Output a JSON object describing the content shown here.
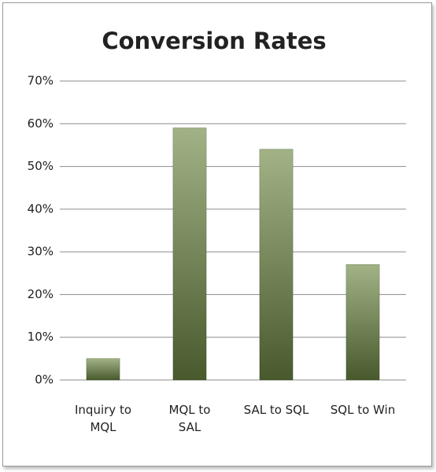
{
  "chart_data": {
    "type": "bar",
    "title": "Conversion Rates",
    "categories": [
      "Inquiry to\nMQL",
      "MQL to\nSAL",
      "SAL to SQL",
      "SQL to Win"
    ],
    "values": [
      5,
      59,
      54,
      27
    ],
    "color": "#6f8a45",
    "ylim": [
      0,
      70
    ],
    "yticks": [
      {
        "value": 0,
        "label": "0%"
      },
      {
        "value": 10,
        "label": "10%"
      },
      {
        "value": 20,
        "label": "20%"
      },
      {
        "value": 30,
        "label": "30%"
      },
      {
        "value": 40,
        "label": "40%"
      },
      {
        "value": 50,
        "label": "50%"
      },
      {
        "value": 60,
        "label": "60%"
      },
      {
        "value": 70,
        "label": "70%"
      }
    ],
    "grid": true
  }
}
